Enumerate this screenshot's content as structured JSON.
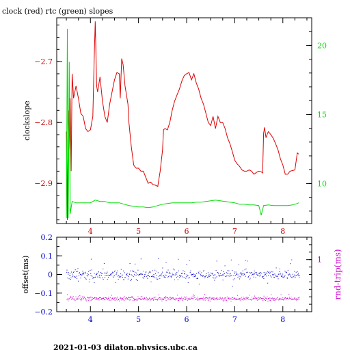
{
  "title": "clock (red) rtc (green) slopes",
  "footer": "2021-01-03  dilaton.physics.ubc.ca",
  "chart_data": [
    {
      "type": "line",
      "ylabel": "clockslope",
      "xlim": [
        3.3,
        8.6
      ],
      "ylim": [
        -2.966,
        -2.628
      ],
      "y2lim": [
        7.1,
        22.0
      ],
      "xticks": [
        4,
        5,
        6,
        7,
        8
      ],
      "yticks": [
        -2.7,
        -2.8,
        -2.9
      ],
      "y2ticks": [
        20,
        15,
        10
      ],
      "colors": {
        "axis": "#000000",
        "left_ticks": "#cc0000",
        "right_ticks": "#00dd00",
        "x_ticks": "#cc0000"
      },
      "series": [
        {
          "color": "#dd0000",
          "axis": "left",
          "points": [
            [
              3.5,
              -2.815
            ],
            [
              3.52,
              -2.96
            ],
            [
              3.53,
              -2.83
            ],
            [
              3.55,
              -2.78
            ],
            [
              3.57,
              -2.845
            ],
            [
              3.58,
              -2.76
            ],
            [
              3.6,
              -2.88
            ],
            [
              3.62,
              -2.72
            ],
            [
              3.65,
              -2.76
            ],
            [
              3.7,
              -2.74
            ],
            [
              3.75,
              -2.76
            ],
            [
              3.8,
              -2.785
            ],
            [
              3.85,
              -2.79
            ],
            [
              3.9,
              -2.81
            ],
            [
              3.95,
              -2.815
            ],
            [
              4.0,
              -2.812
            ],
            [
              4.05,
              -2.79
            ],
            [
              4.08,
              -2.69
            ],
            [
              4.1,
              -2.634
            ],
            [
              4.13,
              -2.74
            ],
            [
              4.15,
              -2.75
            ],
            [
              4.18,
              -2.735
            ],
            [
              4.2,
              -2.725
            ],
            [
              4.25,
              -2.765
            ],
            [
              4.3,
              -2.79
            ],
            [
              4.35,
              -2.8
            ],
            [
              4.4,
              -2.77
            ],
            [
              4.45,
              -2.75
            ],
            [
              4.5,
              -2.73
            ],
            [
              4.55,
              -2.718
            ],
            [
              4.6,
              -2.72
            ],
            [
              4.62,
              -2.76
            ],
            [
              4.65,
              -2.695
            ],
            [
              4.68,
              -2.705
            ],
            [
              4.72,
              -2.74
            ],
            [
              4.78,
              -2.77
            ],
            [
              4.8,
              -2.8
            ],
            [
              4.85,
              -2.84
            ],
            [
              4.9,
              -2.87
            ],
            [
              4.95,
              -2.875
            ],
            [
              5.0,
              -2.875
            ],
            [
              5.05,
              -2.88
            ],
            [
              5.1,
              -2.88
            ],
            [
              5.15,
              -2.89
            ],
            [
              5.2,
              -2.9
            ],
            [
              5.25,
              -2.898
            ],
            [
              5.3,
              -2.902
            ],
            [
              5.35,
              -2.903
            ],
            [
              5.4,
              -2.905
            ],
            [
              5.45,
              -2.88
            ],
            [
              5.5,
              -2.845
            ],
            [
              5.52,
              -2.812
            ],
            [
              5.55,
              -2.81
            ],
            [
              5.6,
              -2.812
            ],
            [
              5.65,
              -2.8
            ],
            [
              5.7,
              -2.78
            ],
            [
              5.75,
              -2.765
            ],
            [
              5.8,
              -2.755
            ],
            [
              5.85,
              -2.745
            ],
            [
              5.9,
              -2.732
            ],
            [
              5.95,
              -2.723
            ],
            [
              6.0,
              -2.72
            ],
            [
              6.05,
              -2.718
            ],
            [
              6.1,
              -2.73
            ],
            [
              6.15,
              -2.72
            ],
            [
              6.2,
              -2.735
            ],
            [
              6.25,
              -2.745
            ],
            [
              6.3,
              -2.76
            ],
            [
              6.35,
              -2.77
            ],
            [
              6.4,
              -2.785
            ],
            [
              6.45,
              -2.8
            ],
            [
              6.5,
              -2.805
            ],
            [
              6.55,
              -2.79
            ],
            [
              6.6,
              -2.81
            ],
            [
              6.65,
              -2.79
            ],
            [
              6.7,
              -2.8
            ],
            [
              6.75,
              -2.8
            ],
            [
              6.8,
              -2.81
            ],
            [
              6.85,
              -2.825
            ],
            [
              6.9,
              -2.835
            ],
            [
              6.95,
              -2.848
            ],
            [
              7.0,
              -2.862
            ],
            [
              7.05,
              -2.868
            ],
            [
              7.1,
              -2.872
            ],
            [
              7.15,
              -2.878
            ],
            [
              7.2,
              -2.88
            ],
            [
              7.25,
              -2.88
            ],
            [
              7.3,
              -2.878
            ],
            [
              7.35,
              -2.88
            ],
            [
              7.4,
              -2.885
            ],
            [
              7.45,
              -2.882
            ],
            [
              7.5,
              -2.88
            ],
            [
              7.55,
              -2.881
            ],
            [
              7.58,
              -2.883
            ],
            [
              7.6,
              -2.818
            ],
            [
              7.62,
              -2.808
            ],
            [
              7.65,
              -2.825
            ],
            [
              7.68,
              -2.818
            ],
            [
              7.7,
              -2.815
            ],
            [
              7.75,
              -2.82
            ],
            [
              7.8,
              -2.826
            ],
            [
              7.85,
              -2.835
            ],
            [
              7.9,
              -2.845
            ],
            [
              7.95,
              -2.86
            ],
            [
              8.0,
              -2.87
            ],
            [
              8.05,
              -2.885
            ],
            [
              8.1,
              -2.885
            ],
            [
              8.15,
              -2.88
            ],
            [
              8.2,
              -2.879
            ],
            [
              8.25,
              -2.878
            ],
            [
              8.3,
              -2.85
            ],
            [
              8.33,
              -2.852
            ]
          ]
        },
        {
          "color": "#00dd00",
          "axis": "right",
          "points": [
            [
              3.5,
              7.5
            ],
            [
              3.52,
              21.2
            ],
            [
              3.54,
              7.5
            ],
            [
              3.56,
              18.8
            ],
            [
              3.58,
              7.8
            ],
            [
              3.62,
              8.7
            ],
            [
              3.7,
              8.6
            ],
            [
              3.8,
              8.6
            ],
            [
              3.9,
              8.6
            ],
            [
              4.0,
              8.6
            ],
            [
              4.1,
              8.8
            ],
            [
              4.2,
              8.7
            ],
            [
              4.3,
              8.7
            ],
            [
              4.4,
              8.6
            ],
            [
              4.5,
              8.6
            ],
            [
              4.6,
              8.6
            ],
            [
              4.7,
              8.5
            ],
            [
              4.8,
              8.4
            ],
            [
              4.9,
              8.35
            ],
            [
              5.0,
              8.3
            ],
            [
              5.1,
              8.3
            ],
            [
              5.2,
              8.25
            ],
            [
              5.3,
              8.3
            ],
            [
              5.4,
              8.4
            ],
            [
              5.5,
              8.5
            ],
            [
              5.6,
              8.55
            ],
            [
              5.7,
              8.6
            ],
            [
              5.8,
              8.6
            ],
            [
              5.9,
              8.6
            ],
            [
              6.0,
              8.6
            ],
            [
              6.1,
              8.6
            ],
            [
              6.2,
              8.65
            ],
            [
              6.3,
              8.65
            ],
            [
              6.4,
              8.7
            ],
            [
              6.5,
              8.75
            ],
            [
              6.6,
              8.8
            ],
            [
              6.7,
              8.75
            ],
            [
              6.8,
              8.7
            ],
            [
              6.9,
              8.65
            ],
            [
              7.0,
              8.6
            ],
            [
              7.1,
              8.5
            ],
            [
              7.2,
              8.5
            ],
            [
              7.3,
              8.45
            ],
            [
              7.4,
              8.45
            ],
            [
              7.5,
              8.4
            ],
            [
              7.55,
              7.7
            ],
            [
              7.6,
              8.4
            ],
            [
              7.7,
              8.45
            ],
            [
              7.8,
              8.4
            ],
            [
              7.9,
              8.4
            ],
            [
              8.0,
              8.4
            ],
            [
              8.1,
              8.4
            ],
            [
              8.2,
              8.45
            ],
            [
              8.3,
              8.55
            ],
            [
              8.33,
              8.6
            ]
          ]
        }
      ]
    },
    {
      "type": "scatter",
      "ylabel": "offset(ms)",
      "y2label": "rnd-trip(ms)",
      "xlim": [
        3.3,
        8.6
      ],
      "ylim": [
        -0.2,
        0.2
      ],
      "y2lim": [
        0.3,
        1.3
      ],
      "xticks": [
        4,
        5,
        6,
        7,
        8
      ],
      "yticks": [
        0.2,
        0.1,
        0,
        -0.1,
        -0.2
      ],
      "y2ticks": [
        1
      ],
      "colors": {
        "axis": "#000000",
        "left_ticks": "#0000cc",
        "right_ticks": "#cc00cc",
        "x_ticks": "#0000cc"
      },
      "series": [
        {
          "color": "#0000cc",
          "axis": "left",
          "center": 0.0,
          "spread": 0.02,
          "outliers": 0.08,
          "n": 520
        },
        {
          "color": "#cc00cc",
          "axis": "right",
          "center": 0.48,
          "spread": 0.02,
          "outliers": 0.05,
          "n": 520
        }
      ]
    }
  ]
}
